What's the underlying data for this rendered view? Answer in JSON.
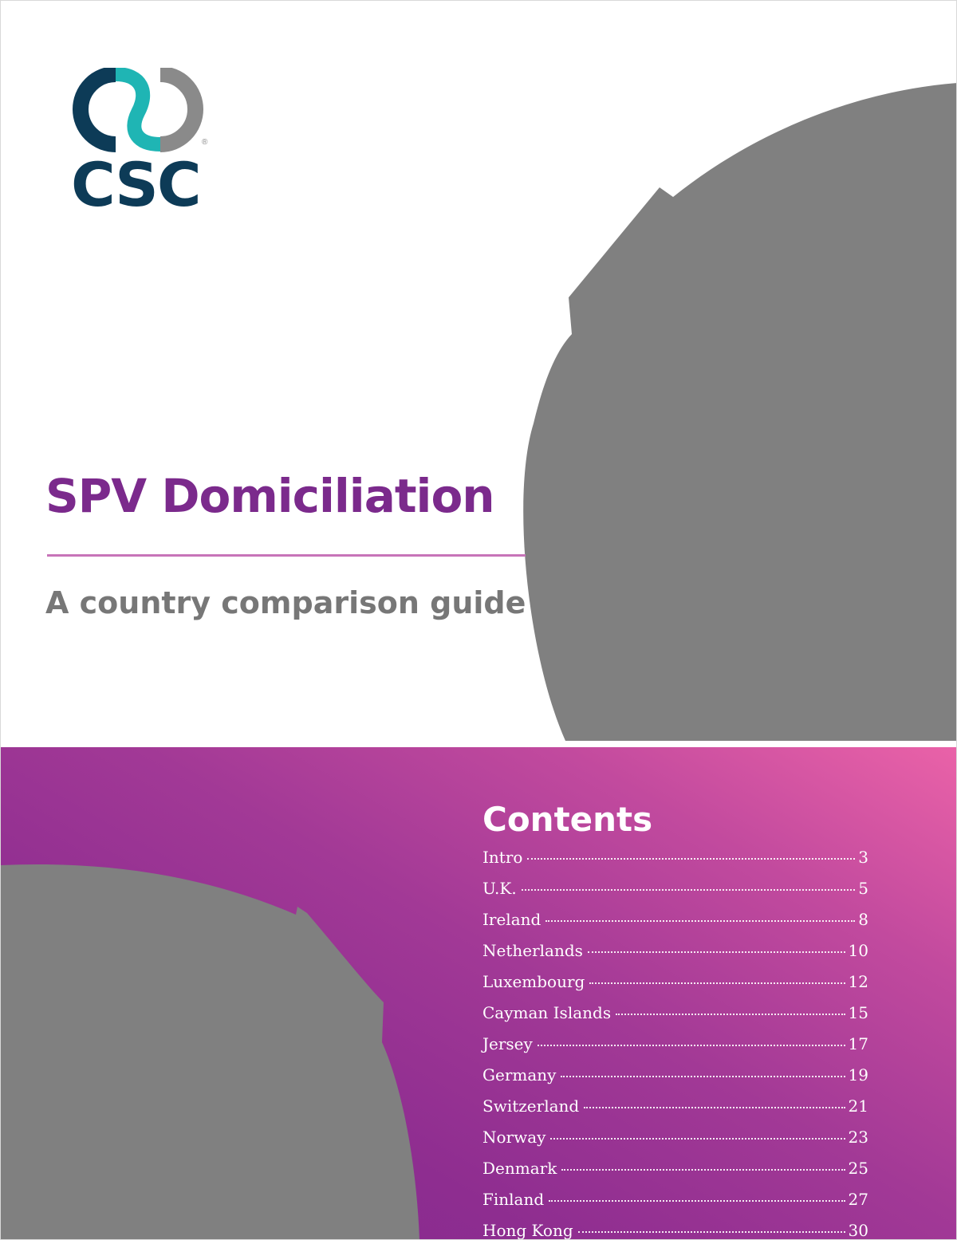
{
  "brand": {
    "name": "CSC",
    "registered_mark": "®",
    "colors": {
      "navy": "#0d3b57",
      "teal": "#1fb5b4",
      "gray": "#8a8a8a"
    }
  },
  "cover": {
    "title": "SPV Domiciliation",
    "subtitle": "A country comparison guide",
    "title_color": "#7b2a8c",
    "rule_color": "#c774b8",
    "placeholder_color": "#808080"
  },
  "contents": {
    "heading": "Contents",
    "items": [
      {
        "label": "Intro",
        "page": "3"
      },
      {
        "label": "U.K.",
        "page": "5"
      },
      {
        "label": "Ireland",
        "page": "8"
      },
      {
        "label": "Netherlands",
        "page": "10"
      },
      {
        "label": "Luxembourg",
        "page": "12"
      },
      {
        "label": "Cayman Islands",
        "page": "15"
      },
      {
        "label": "Jersey",
        "page": "17"
      },
      {
        "label": "Germany",
        "page": "19"
      },
      {
        "label": "Switzerland",
        "page": "21"
      },
      {
        "label": "Norway",
        "page": "23"
      },
      {
        "label": "Denmark",
        "page": "25"
      },
      {
        "label": "Finland",
        "page": "27"
      },
      {
        "label": "Hong Kong",
        "page": "30"
      }
    ]
  }
}
